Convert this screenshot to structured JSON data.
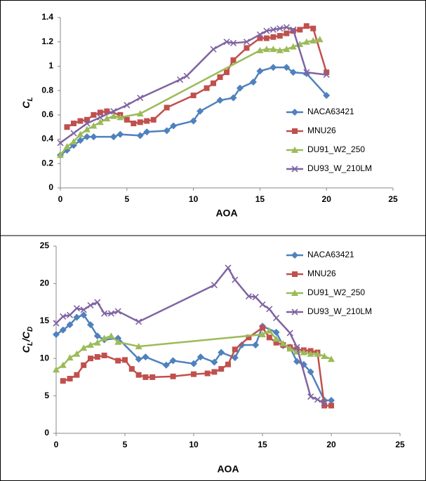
{
  "chart_data": [
    {
      "type": "line",
      "xlabel": "AOA",
      "ylabel": [
        {
          "text": "C"
        },
        {
          "text": "L",
          "sub": true
        }
      ],
      "xlim": [
        0,
        25
      ],
      "xticks": [
        0,
        5,
        10,
        15,
        20,
        25
      ],
      "ylim": [
        0,
        1.4
      ],
      "yticks": [
        0,
        0.2,
        0.4,
        0.6,
        0.8,
        1,
        1.2,
        1.4
      ],
      "series": [
        {
          "name": "NACA63421",
          "color": "#4F81BD",
          "marker": "diamond",
          "x": [
            0,
            0.5,
            1,
            1.5,
            2,
            2.5,
            4,
            4.5,
            6,
            6.5,
            8,
            8.5,
            10,
            10.5,
            12,
            13,
            13.5,
            14.5,
            15,
            16,
            17,
            17.5,
            18.5,
            20
          ],
          "values": [
            0.27,
            0.31,
            0.35,
            0.39,
            0.42,
            0.42,
            0.42,
            0.44,
            0.43,
            0.46,
            0.47,
            0.51,
            0.55,
            0.63,
            0.72,
            0.74,
            0.82,
            0.87,
            0.96,
            0.99,
            0.99,
            0.95,
            0.94,
            0.76
          ]
        },
        {
          "name": "MNU26",
          "color": "#C0504D",
          "marker": "square",
          "x": [
            0.5,
            1,
            1.5,
            2,
            2.5,
            3,
            3.5,
            4.5,
            5,
            5.5,
            6,
            6.5,
            7,
            8,
            10,
            11,
            11.5,
            12,
            12.5,
            13,
            14,
            15,
            15.5,
            16,
            16.5,
            17,
            17.5,
            18,
            18.5,
            19,
            20
          ],
          "values": [
            0.5,
            0.53,
            0.55,
            0.56,
            0.6,
            0.62,
            0.63,
            0.6,
            0.56,
            0.53,
            0.54,
            0.55,
            0.56,
            0.66,
            0.76,
            0.82,
            0.86,
            0.91,
            0.95,
            1.05,
            1.15,
            1.23,
            1.23,
            1.24,
            1.25,
            1.27,
            1.29,
            1.3,
            1.33,
            1.31,
            0.95
          ]
        },
        {
          "name": "DU91_W2_250",
          "color": "#9BBB59",
          "marker": "triangle",
          "x": [
            0,
            0.5,
            1,
            1.5,
            2,
            2.5,
            3,
            3.5,
            4,
            4.5,
            6,
            15,
            15.5,
            16,
            16.5,
            17,
            17.5,
            18,
            18.5,
            19,
            19.5
          ],
          "values": [
            0.27,
            0.34,
            0.38,
            0.44,
            0.48,
            0.51,
            0.54,
            0.57,
            0.59,
            0.58,
            0.61,
            1.13,
            1.14,
            1.14,
            1.13,
            1.14,
            1.16,
            1.18,
            1.2,
            1.21,
            1.22
          ]
        },
        {
          "name": "DU93_W_210LM",
          "color": "#8064A2",
          "marker": "x",
          "x": [
            0,
            1,
            2,
            3,
            4,
            5,
            6,
            9,
            9.5,
            11.5,
            12.5,
            13,
            14,
            15,
            15.5,
            16,
            16.5,
            17,
            17.5,
            18.5,
            20
          ],
          "values": [
            0.37,
            0.45,
            0.53,
            0.58,
            0.63,
            0.68,
            0.74,
            0.89,
            0.92,
            1.14,
            1.2,
            1.19,
            1.2,
            1.26,
            1.29,
            1.3,
            1.31,
            1.32,
            1.3,
            0.95,
            0.93
          ]
        }
      ]
    },
    {
      "type": "line",
      "xlabel": "AOA",
      "ylabel": [
        {
          "text": "C"
        },
        {
          "text": "L",
          "sub": true
        },
        {
          "text": "/C"
        },
        {
          "text": "D",
          "sub": true
        }
      ],
      "xlim": [
        0,
        25
      ],
      "xticks": [
        0,
        5,
        10,
        15,
        20,
        25
      ],
      "ylim": [
        0,
        25
      ],
      "yticks": [
        0,
        5,
        10,
        15,
        20,
        25
      ],
      "series": [
        {
          "name": "NACA63421",
          "color": "#4F81BD",
          "marker": "diamond",
          "x": [
            0,
            0.5,
            1,
            1.5,
            2,
            2.5,
            3,
            3.5,
            4.5,
            6,
            6.5,
            8,
            8.5,
            10,
            10.5,
            11.5,
            12,
            13,
            13.5,
            14.5,
            15,
            16,
            16.5,
            17,
            17.5,
            18,
            18.5,
            19.5,
            20
          ],
          "values": [
            13.2,
            13.8,
            14.5,
            15.5,
            15.8,
            14.5,
            13,
            12.5,
            12.7,
            9.9,
            10.2,
            9.1,
            9.7,
            9.3,
            10.2,
            9.5,
            10.8,
            10.1,
            11.8,
            11.8,
            14.3,
            13.5,
            11.7,
            11.5,
            9.6,
            9.2,
            8.2,
            4.4,
            4.4
          ]
        },
        {
          "name": "MNU26",
          "color": "#C0504D",
          "marker": "square",
          "x": [
            0.5,
            1,
            1.5,
            2,
            2.5,
            3,
            3.5,
            4.5,
            5,
            5.5,
            6,
            6.5,
            7,
            8.5,
            10,
            11,
            11.5,
            12,
            12.5,
            13,
            14,
            15,
            15.5,
            16,
            16.5,
            17,
            17.5,
            18,
            18.5,
            19,
            19.5,
            20
          ],
          "values": [
            7,
            7.3,
            7.8,
            9.1,
            10,
            10.2,
            10.4,
            9.7,
            9.8,
            8.6,
            7.8,
            7.5,
            7.5,
            7.6,
            7.9,
            8,
            8.2,
            8.6,
            9.2,
            11.2,
            12.8,
            14.1,
            12.8,
            12.1,
            11.8,
            11.5,
            11.2,
            11.1,
            11,
            10.8,
            3.7,
            3.7
          ]
        },
        {
          "name": "DU91_W2_250",
          "color": "#9BBB59",
          "marker": "triangle",
          "x": [
            0,
            0.5,
            1,
            1.5,
            2,
            2.5,
            3,
            3.5,
            4,
            4.5,
            6,
            15,
            15.5,
            16,
            16.5,
            17,
            17.5,
            18,
            18.5,
            19,
            19.5,
            20
          ],
          "values": [
            8.5,
            9.1,
            10.1,
            10.6,
            11.4,
            11.8,
            12.1,
            12.7,
            13,
            12.2,
            11.6,
            13.2,
            13.7,
            12.6,
            12,
            11.3,
            10.9,
            10.8,
            10.6,
            10.6,
            10.3,
            9.9
          ]
        },
        {
          "name": "DU93_W_210LM",
          "color": "#8064A2",
          "marker": "x",
          "x": [
            0,
            0.5,
            1,
            1.5,
            2,
            2.5,
            3,
            3.5,
            4,
            4.5,
            6,
            11.5,
            12.5,
            13,
            14,
            14.5,
            15,
            15.5,
            16,
            17,
            17.5,
            18.5,
            19,
            19.5
          ],
          "values": [
            14.7,
            15.6,
            15.8,
            16.7,
            16.5,
            17.1,
            17.5,
            16,
            16,
            16.3,
            14.9,
            19.8,
            22.1,
            20.5,
            18.3,
            18.2,
            17.2,
            16.6,
            15.4,
            13.4,
            11.5,
            4.9,
            4.5,
            4
          ]
        }
      ]
    }
  ]
}
